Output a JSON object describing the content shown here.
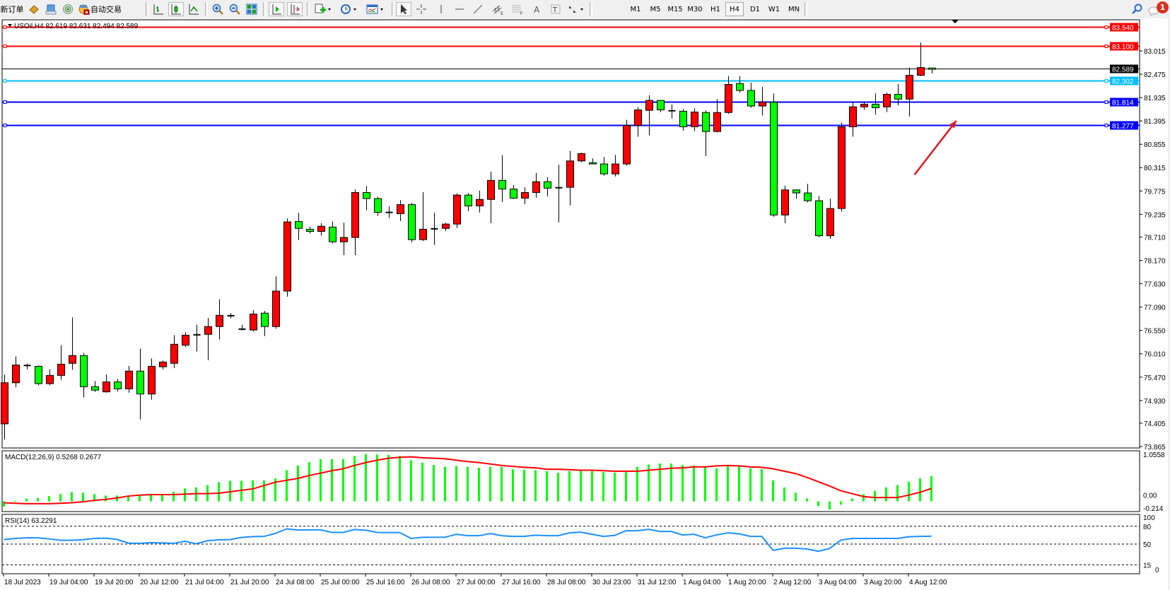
{
  "toolbar": {
    "new_order_label": "新订单",
    "auto_trading_label": "自动交易",
    "timeframes": [
      "M1",
      "M5",
      "M15",
      "M30",
      "H1",
      "H4",
      "D1",
      "W1",
      "MN"
    ],
    "active_timeframe": "H4",
    "notification_count": "1",
    "icons": [
      "market-watch-icon",
      "data-window-icon",
      "signals-icon",
      "auto-trading-icon",
      "bar-chart-icon",
      "candlestick-icon",
      "line-chart-icon",
      "zoom-in-icon",
      "zoom-out-icon",
      "tile-windows-icon",
      "chart-shift-icon",
      "autoscroll-icon",
      "indicators-icon",
      "periods-icon",
      "templates-icon",
      "cursor-icon",
      "crosshair-icon",
      "vertical-line-icon",
      "horizontal-line-icon",
      "trendline-icon",
      "equidistant-channel-icon",
      "fibonacci-icon",
      "text-icon",
      "text-label-icon",
      "arrows-icon",
      "search-icon",
      "chat-icon"
    ]
  },
  "chart": {
    "title": "USOil,H4  82.619 82.631 82.494 82.589",
    "symbol": "USOil",
    "timeframe": "H4",
    "ohlc": {
      "open": 82.619,
      "high": 82.631,
      "low": 82.494,
      "close": 82.589
    },
    "colors": {
      "bull": "#ff0000",
      "bear": "#00ff00",
      "outline": "#000000",
      "background": "#ffffff"
    },
    "price_ticks": [
      "83.015",
      "82.475",
      "81.935",
      "81.395",
      "80.855",
      "80.315",
      "79.775",
      "79.235",
      "78.710",
      "78.170",
      "77.630",
      "77.090",
      "76.550",
      "76.010",
      "75.470",
      "74.930",
      "74.405",
      "73.865"
    ],
    "horizontal_lines": [
      {
        "price": 83.54,
        "label": "83.540",
        "color": "#ff0000"
      },
      {
        "price": 83.1,
        "label": "83.100",
        "color": "#ff0000"
      },
      {
        "price": 82.589,
        "label": "82.589",
        "color": "#000000",
        "kind": "bid"
      },
      {
        "price": 82.302,
        "label": "82.302",
        "color": "#00bfff"
      },
      {
        "price": 81.814,
        "label": "81.814",
        "color": "#0000ff"
      },
      {
        "price": 81.277,
        "label": "81.277",
        "color": "#0000ff"
      }
    ],
    "annotation": {
      "type": "arrow",
      "color": "#e8141e",
      "from": {
        "bar": 80.5,
        "price": 80.15
      },
      "to": {
        "bar": 84.2,
        "price": 81.4
      }
    },
    "time_labels": [
      "18 Jul 2023",
      "19 Jul 04:00",
      "19 Jul 20:00",
      "20 Jul 12:00",
      "21 Jul 04:00",
      "21 Jul 20:00",
      "24 Jul 08:00",
      "25 Jul 00:00",
      "25 Jul 16:00",
      "26 Jul 08:00",
      "27 Jul 00:00",
      "27 Jul 16:00",
      "28 Jul 08:00",
      "30 Jul 23:00",
      "31 Jul 12:00",
      "1 Aug 04:00",
      "1 Aug 20:00",
      "2 Aug 12:00",
      "3 Aug 04:00",
      "3 Aug 20:00",
      "4 Aug 12:00"
    ]
  },
  "chart_data": {
    "type": "candlestick",
    "bars_per_time_label": 4,
    "ylim": [
      73.865,
      83.015
    ],
    "candles_ohlc": [
      [
        74.39,
        75.53,
        74.03,
        75.34
      ],
      [
        75.34,
        75.95,
        75.24,
        75.75
      ],
      [
        75.74,
        75.78,
        75.65,
        75.73
      ],
      [
        75.72,
        75.74,
        75.28,
        75.32
      ],
      [
        75.32,
        75.65,
        75.28,
        75.51
      ],
      [
        75.51,
        76.21,
        75.41,
        75.77
      ],
      [
        75.79,
        76.85,
        75.64,
        75.97
      ],
      [
        75.97,
        76.03,
        75.0,
        75.25
      ],
      [
        75.25,
        75.38,
        75.13,
        75.17
      ],
      [
        75.13,
        75.53,
        75.11,
        75.36
      ],
      [
        75.36,
        75.43,
        75.14,
        75.2
      ],
      [
        75.2,
        75.73,
        75.11,
        75.61
      ],
      [
        75.61,
        76.13,
        74.49,
        75.08
      ],
      [
        75.08,
        75.9,
        74.95,
        75.72
      ],
      [
        75.71,
        75.85,
        75.65,
        75.82
      ],
      [
        75.79,
        76.44,
        75.68,
        76.23
      ],
      [
        76.21,
        76.51,
        76.17,
        76.44
      ],
      [
        76.45,
        76.68,
        76.06,
        76.45
      ],
      [
        76.46,
        76.84,
        75.86,
        76.64
      ],
      [
        76.64,
        77.27,
        76.34,
        76.9
      ],
      [
        76.89,
        76.95,
        76.83,
        76.89
      ],
      [
        76.58,
        76.68,
        76.55,
        76.58
      ],
      [
        76.56,
        77.02,
        76.53,
        76.93
      ],
      [
        76.95,
        77.0,
        76.42,
        76.64
      ],
      [
        76.64,
        77.8,
        76.59,
        77.46
      ],
      [
        77.46,
        79.14,
        77.33,
        79.06
      ],
      [
        79.07,
        79.27,
        78.64,
        78.91
      ],
      [
        78.89,
        78.95,
        78.79,
        78.84
      ],
      [
        78.84,
        79.03,
        78.74,
        78.96
      ],
      [
        78.94,
        79.07,
        78.56,
        78.6
      ],
      [
        78.6,
        79.04,
        78.29,
        78.7
      ],
      [
        78.7,
        79.81,
        78.29,
        79.74
      ],
      [
        79.74,
        79.89,
        79.33,
        79.6
      ],
      [
        79.6,
        79.64,
        79.2,
        79.28
      ],
      [
        79.28,
        79.42,
        79.15,
        79.28
      ],
      [
        79.25,
        79.56,
        79.08,
        79.46
      ],
      [
        79.46,
        79.5,
        78.59,
        78.65
      ],
      [
        78.65,
        79.75,
        78.62,
        78.89
      ],
      [
        78.9,
        79.27,
        78.53,
        78.9
      ],
      [
        78.91,
        79.04,
        78.85,
        79.01
      ],
      [
        79.01,
        79.72,
        78.92,
        79.68
      ],
      [
        79.68,
        79.73,
        79.31,
        79.43
      ],
      [
        79.43,
        79.78,
        79.28,
        79.58
      ],
      [
        79.58,
        80.22,
        79.03,
        80.02
      ],
      [
        80.02,
        80.6,
        79.52,
        79.82
      ],
      [
        79.82,
        79.91,
        79.59,
        79.61
      ],
      [
        79.61,
        79.86,
        79.47,
        79.74
      ],
      [
        79.74,
        80.19,
        79.62,
        79.99
      ],
      [
        79.99,
        80.09,
        79.65,
        79.84
      ],
      [
        79.85,
        80.38,
        79.05,
        79.85
      ],
      [
        79.86,
        80.7,
        79.44,
        80.47
      ],
      [
        80.47,
        80.66,
        80.44,
        80.64
      ],
      [
        80.43,
        80.53,
        80.4,
        80.4
      ],
      [
        80.4,
        80.56,
        80.13,
        80.17
      ],
      [
        80.17,
        80.61,
        80.11,
        80.4
      ],
      [
        80.4,
        81.42,
        80.36,
        81.29
      ],
      [
        81.29,
        81.71,
        81.03,
        81.65
      ],
      [
        81.64,
        81.99,
        81.06,
        81.87
      ],
      [
        81.87,
        81.88,
        81.6,
        81.65
      ],
      [
        81.63,
        81.78,
        81.45,
        81.63
      ],
      [
        81.62,
        81.67,
        81.17,
        81.26
      ],
      [
        81.26,
        81.69,
        81.16,
        81.6
      ],
      [
        81.59,
        81.64,
        80.58,
        81.15
      ],
      [
        81.15,
        81.9,
        81.13,
        81.59
      ],
      [
        81.59,
        82.43,
        81.56,
        82.24
      ],
      [
        82.26,
        82.43,
        82.05,
        82.1
      ],
      [
        82.1,
        82.28,
        81.7,
        81.74
      ],
      [
        81.74,
        82.18,
        81.52,
        81.83
      ],
      [
        81.83,
        82.03,
        79.18,
        79.22
      ],
      [
        79.22,
        79.9,
        79.03,
        79.8
      ],
      [
        79.8,
        79.8,
        79.6,
        79.73
      ],
      [
        79.73,
        79.94,
        79.51,
        79.55
      ],
      [
        79.55,
        79.66,
        78.71,
        78.74
      ],
      [
        78.74,
        79.6,
        78.67,
        79.37
      ],
      [
        79.37,
        81.36,
        79.3,
        81.26
      ],
      [
        81.26,
        81.83,
        81.03,
        81.72
      ],
      [
        81.72,
        81.83,
        81.65,
        81.78
      ],
      [
        81.78,
        82.03,
        81.54,
        81.7
      ],
      [
        81.72,
        82.05,
        81.6,
        82.01
      ],
      [
        82.01,
        82.25,
        81.75,
        81.9
      ],
      [
        81.9,
        82.63,
        81.5,
        82.45
      ],
      [
        82.45,
        83.21,
        82.43,
        82.63
      ],
      [
        82.619,
        82.631,
        82.494,
        82.589
      ]
    ],
    "macd": {
      "label": "MACD(12,26,9) 0.5268 0.2677",
      "ylim": [
        -0.214,
        1.0558
      ],
      "ticks": [
        "1.0558",
        "0.00",
        "-0.214"
      ],
      "histogram_color": "#00ff00",
      "signal_color": "#ff0000",
      "histogram": [
        -0.11,
        0.01,
        0.06,
        0.07,
        0.11,
        0.15,
        0.19,
        0.18,
        0.15,
        0.12,
        0.12,
        0.12,
        0.11,
        0.13,
        0.13,
        0.2,
        0.27,
        0.29,
        0.34,
        0.4,
        0.43,
        0.43,
        0.44,
        0.44,
        0.48,
        0.65,
        0.75,
        0.82,
        0.88,
        0.88,
        0.88,
        0.95,
        0.99,
        0.98,
        0.97,
        0.95,
        0.86,
        0.81,
        0.76,
        0.72,
        0.74,
        0.72,
        0.7,
        0.72,
        0.72,
        0.67,
        0.66,
        0.65,
        0.63,
        0.6,
        0.63,
        0.65,
        0.63,
        0.61,
        0.6,
        0.61,
        0.72,
        0.77,
        0.79,
        0.79,
        0.76,
        0.75,
        0.72,
        0.69,
        0.74,
        0.74,
        0.69,
        0.67,
        0.44,
        0.29,
        0.18,
        0.06,
        -0.1,
        -0.17,
        -0.07,
        0.06,
        0.15,
        0.22,
        0.29,
        0.34,
        0.41,
        0.48,
        0.5268
      ],
      "signal": [
        -0.03,
        -0.04,
        -0.05,
        -0.05,
        -0.05,
        -0.04,
        -0.03,
        -0.01,
        0.02,
        0.04,
        0.07,
        0.11,
        0.13,
        0.14,
        0.14,
        0.14,
        0.15,
        0.16,
        0.16,
        0.17,
        0.2,
        0.23,
        0.26,
        0.33,
        0.4,
        0.44,
        0.48,
        0.54,
        0.59,
        0.64,
        0.68,
        0.75,
        0.81,
        0.86,
        0.9,
        0.92,
        0.93,
        0.91,
        0.9,
        0.89,
        0.86,
        0.83,
        0.81,
        0.78,
        0.75,
        0.73,
        0.71,
        0.7,
        0.67,
        0.67,
        0.66,
        0.65,
        0.65,
        0.64,
        0.63,
        0.63,
        0.63,
        0.65,
        0.67,
        0.69,
        0.7,
        0.72,
        0.72,
        0.74,
        0.75,
        0.74,
        0.72,
        0.71,
        0.68,
        0.63,
        0.58,
        0.5,
        0.41,
        0.32,
        0.22,
        0.16,
        0.1,
        0.08,
        0.08,
        0.08,
        0.13,
        0.19,
        0.2677
      ]
    },
    "rsi": {
      "label": "RSI(14) 63.2291",
      "ylim": [
        0,
        100
      ],
      "ticks": [
        "100",
        "80",
        "50",
        "15",
        "0"
      ],
      "levels": [
        80,
        50,
        15
      ],
      "color": "#1e90ff",
      "values": [
        57.6,
        59.5,
        60.6,
        60.6,
        58.7,
        56.4,
        56.4,
        57.4,
        59.5,
        59.9,
        57.9,
        51.7,
        51.2,
        52.4,
        52.0,
        51.2,
        54.7,
        50.5,
        55.6,
        57.1,
        57.6,
        61.1,
        62.6,
        62.9,
        68.0,
        75.6,
        73.6,
        74.0,
        74.0,
        69.7,
        69.7,
        74.5,
        73.3,
        69.7,
        69.3,
        69.3,
        59.5,
        61.5,
        61.5,
        61.5,
        66.5,
        64.2,
        64.2,
        67.7,
        64.2,
        63.0,
        63.0,
        65.0,
        64.2,
        64.2,
        68.9,
        70.1,
        66.5,
        63.0,
        64.6,
        72.5,
        72.5,
        74.9,
        71.3,
        71.3,
        65.4,
        66.5,
        60.6,
        65.4,
        68.9,
        67.3,
        63.0,
        63.0,
        39.4,
        43.0,
        43.0,
        41.8,
        37.9,
        42.6,
        56.8,
        59.5,
        59.5,
        59.5,
        59.5,
        59.5,
        62.3,
        63.0,
        63.2291
      ]
    }
  }
}
